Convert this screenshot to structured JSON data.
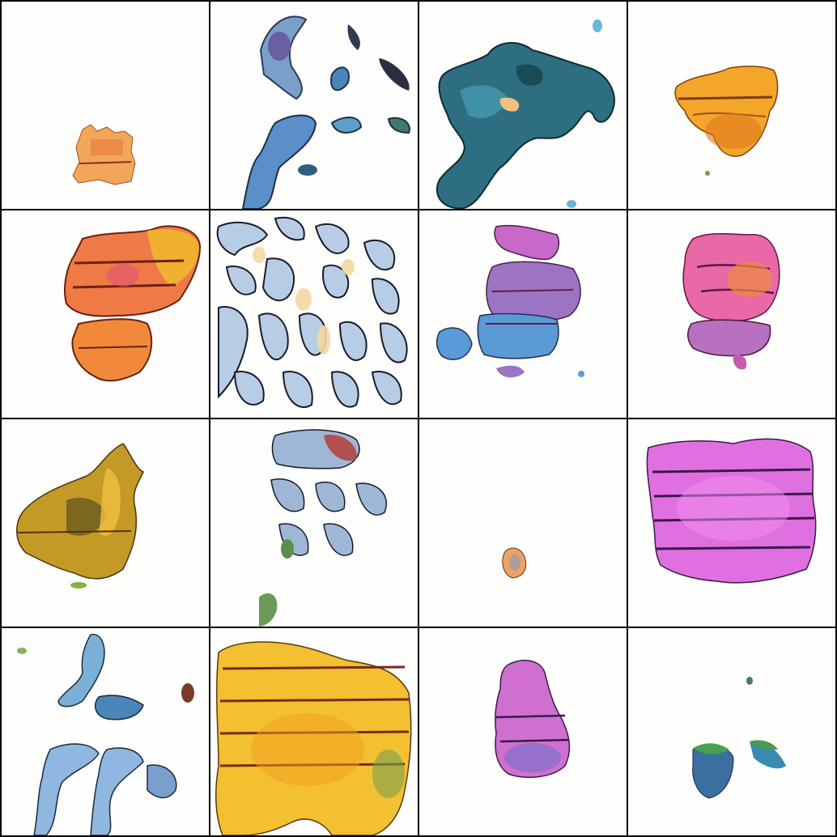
{
  "grid": {
    "rows": 4,
    "cols": 4,
    "border_color": "#000000",
    "background": "#fdfdfb"
  },
  "tiles": [
    {
      "id": "r1c1",
      "description_palette": [
        "#f0a050",
        "#e07a40",
        "#f7d060"
      ],
      "motif": "small-orange-block"
    },
    {
      "id": "r1c2",
      "description_palette": [
        "#6fa8d0",
        "#3d6f8f",
        "#f0e0a0"
      ],
      "motif": "blue-scattered-blobs"
    },
    {
      "id": "r1c3",
      "description_palette": [
        "#2f6f7f",
        "#4aa0b0",
        "#1d4f55"
      ],
      "motif": "teal-large-blob"
    },
    {
      "id": "r1c4",
      "description_palette": [
        "#f0a020",
        "#e07020",
        "#f7c040"
      ],
      "motif": "orange-block"
    },
    {
      "id": "r2c1",
      "description_palette": [
        "#f08040",
        "#e06060",
        "#f0b030"
      ],
      "motif": "orange-striped-blob"
    },
    {
      "id": "r2c2",
      "description_palette": [
        "#a8c8e0",
        "#f0d080",
        "#ffffff"
      ],
      "motif": "maze-pattern"
    },
    {
      "id": "r2c3",
      "description_palette": [
        "#c070c0",
        "#5090d0",
        "#e0b0d0"
      ],
      "motif": "purple-blue-figure"
    },
    {
      "id": "r2c4",
      "description_palette": [
        "#e060a0",
        "#f08040",
        "#b060c0"
      ],
      "motif": "pink-orange-blob"
    },
    {
      "id": "r3c1",
      "description_palette": [
        "#d0a020",
        "#806020",
        "#f0c040"
      ],
      "motif": "olive-yellow-blob"
    },
    {
      "id": "r3c2",
      "description_palette": [
        "#90b0d0",
        "#c06060",
        "#f0e0b0"
      ],
      "motif": "wavy-lines"
    },
    {
      "id": "r3c3",
      "description_palette": [
        "#f0a060",
        "#ffffff"
      ],
      "motif": "tiny-speck"
    },
    {
      "id": "r3c4",
      "description_palette": [
        "#e070e0",
        "#c050c0",
        "#f090f0"
      ],
      "motif": "pink-striped-block"
    },
    {
      "id": "r4c1",
      "description_palette": [
        "#7ab0d8",
        "#3a6f8f",
        "#f0e0c0"
      ],
      "motif": "blue-streaks"
    },
    {
      "id": "r4c2",
      "description_palette": [
        "#f0c030",
        "#e0a020",
        "#8a5020"
      ],
      "motif": "yellow-big-block"
    },
    {
      "id": "r4c3",
      "description_palette": [
        "#d070d0",
        "#7060c0",
        "#e090e0"
      ],
      "motif": "purple-small-block"
    },
    {
      "id": "r4c4",
      "description_palette": [
        "#4080b0",
        "#50a050",
        "#f0f0f0"
      ],
      "motif": "small-green-blue-blobs"
    }
  ]
}
